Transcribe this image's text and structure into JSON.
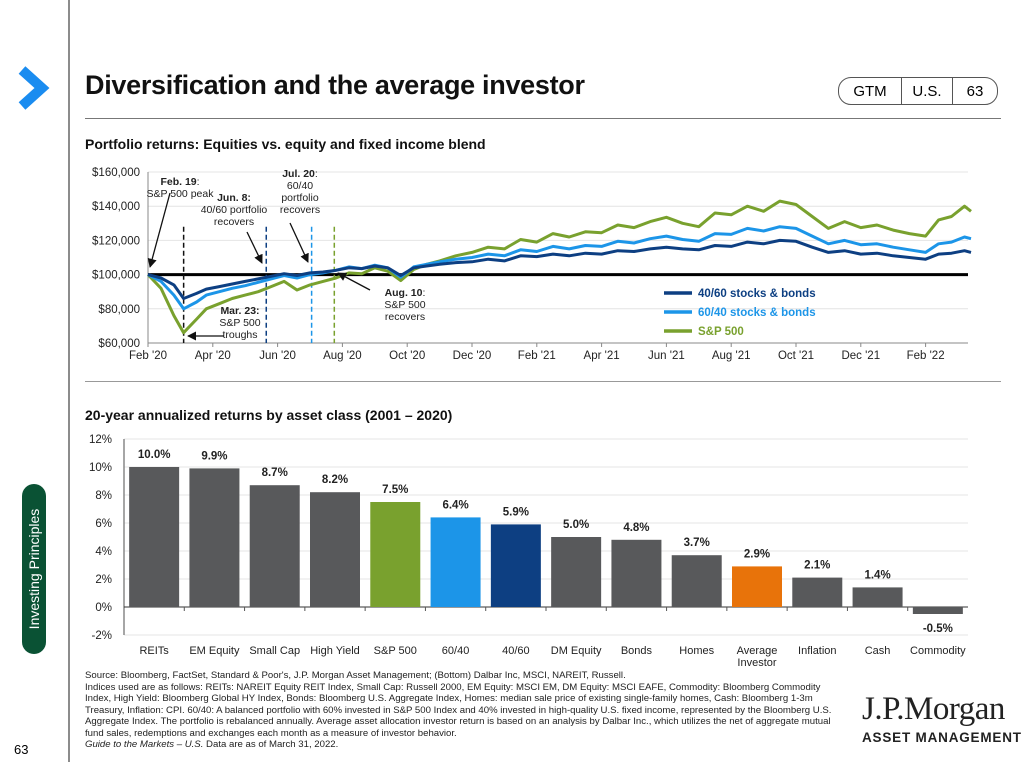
{
  "header": {
    "title": "Diversification and the average investor",
    "pill": [
      "GTM",
      "U.S.",
      "63"
    ]
  },
  "sidebar": {
    "section_label": "Investing Principles",
    "page_number": "63",
    "accent_color": "#1a8cf0",
    "section_color": "#0a5234"
  },
  "chart_data": [
    {
      "type": "line",
      "title": "Portfolio returns: Equities vs. equity and fixed income blend",
      "xlabel": "",
      "ylabel": "",
      "x_tick_labels": [
        "Feb '20",
        "Apr '20",
        "Jun '20",
        "Aug '20",
        "Oct '20",
        "Dec '20",
        "Feb '21",
        "Apr '21",
        "Jun '21",
        "Aug '21",
        "Oct '21",
        "Dec '21",
        "Feb '22"
      ],
      "x_range_months": [
        0,
        25.4
      ],
      "y_tick_labels": [
        "$60,000",
        "$80,000",
        "$100,000",
        "$120,000",
        "$140,000",
        "$160,000"
      ],
      "ylim": [
        60000,
        160000
      ],
      "y_ticks": [
        60000,
        80000,
        100000,
        120000,
        140000,
        160000
      ],
      "baseline": 100000,
      "grid": true,
      "legend_position": "bottom-right",
      "series": [
        {
          "name": "40/60 stocks & bonds",
          "color": "#0d3f82",
          "x": [
            0,
            0.4,
            0.8,
            1.1,
            1.5,
            1.8,
            2.2,
            2.6,
            3.0,
            3.4,
            3.8,
            4.2,
            4.6,
            5.0,
            5.4,
            5.8,
            6.2,
            6.6,
            7.0,
            7.4,
            7.8,
            8.2,
            8.6,
            9.0,
            9.5,
            10,
            10.5,
            11,
            11.5,
            12,
            12.5,
            13,
            13.5,
            14,
            14.5,
            15,
            15.5,
            16,
            16.5,
            17,
            17.5,
            18,
            18.5,
            19,
            19.5,
            20,
            20.5,
            21,
            21.5,
            22,
            22.5,
            23,
            23.5,
            24,
            24.4,
            24.8,
            25.2,
            25.4
          ],
          "y": [
            100000,
            98000,
            94000,
            86000,
            89000,
            91500,
            93000,
            94500,
            96000,
            97500,
            99000,
            100500,
            99500,
            101000,
            101500,
            102500,
            104000,
            103500,
            105000,
            104000,
            99500,
            104000,
            105000,
            106000,
            107000,
            107500,
            109000,
            108000,
            111000,
            110500,
            112000,
            111000,
            112500,
            112000,
            114000,
            113500,
            115000,
            116000,
            115000,
            114500,
            117000,
            116500,
            119000,
            118000,
            120000,
            119500,
            116000,
            113000,
            114000,
            112000,
            112500,
            111000,
            110000,
            109000,
            112000,
            112500,
            114000,
            113000
          ]
        },
        {
          "name": "60/40 stocks & bonds",
          "color": "#1c95e8",
          "x": [
            0,
            0.4,
            0.8,
            1.1,
            1.5,
            1.8,
            2.2,
            2.6,
            3.0,
            3.4,
            3.8,
            4.2,
            4.6,
            5.0,
            5.4,
            5.8,
            6.2,
            6.6,
            7.0,
            7.4,
            7.8,
            8.2,
            8.6,
            9.0,
            9.5,
            10,
            10.5,
            11,
            11.5,
            12,
            12.5,
            13,
            13.5,
            14,
            14.5,
            15,
            15.5,
            16,
            16.5,
            17,
            17.5,
            18,
            18.5,
            19,
            19.5,
            20,
            20.5,
            21,
            21.5,
            22,
            22.5,
            23,
            23.5,
            24,
            24.4,
            24.8,
            25.2,
            25.4
          ],
          "y": [
            100000,
            96000,
            88000,
            80000,
            84000,
            88000,
            90000,
            92000,
            93500,
            95500,
            97500,
            99500,
            98000,
            100000,
            101000,
            102500,
            104500,
            103500,
            105500,
            104000,
            98500,
            104500,
            106000,
            107500,
            109000,
            110000,
            112000,
            111000,
            114500,
            113500,
            116500,
            115000,
            117000,
            116500,
            119500,
            118500,
            121000,
            122500,
            120500,
            119500,
            124000,
            123500,
            127000,
            125500,
            128000,
            127000,
            122500,
            118000,
            120000,
            117500,
            118000,
            116000,
            114500,
            113000,
            118000,
            119000,
            122000,
            121000
          ]
        },
        {
          "name": "S&P 500",
          "color": "#79a12e",
          "x": [
            0,
            0.4,
            0.8,
            1.1,
            1.5,
            1.8,
            2.2,
            2.6,
            3.0,
            3.4,
            3.8,
            4.2,
            4.6,
            5.0,
            5.4,
            5.8,
            6.2,
            6.6,
            7.0,
            7.4,
            7.8,
            8.2,
            8.6,
            9.0,
            9.5,
            10,
            10.5,
            11,
            11.5,
            12,
            12.5,
            13,
            13.5,
            14,
            14.5,
            15,
            15.5,
            16,
            16.5,
            17,
            17.5,
            18,
            18.5,
            19,
            19.5,
            20,
            20.5,
            21,
            21.5,
            22,
            22.5,
            23,
            23.5,
            24,
            24.4,
            24.8,
            25.2,
            25.4
          ],
          "y": [
            100000,
            92000,
            76000,
            66000,
            74000,
            80000,
            83000,
            86000,
            88000,
            90000,
            93000,
            96000,
            91000,
            94000,
            96000,
            98000,
            101000,
            100500,
            104000,
            102000,
            96500,
            103000,
            106000,
            108000,
            111000,
            113000,
            116000,
            115000,
            120500,
            119000,
            124000,
            122000,
            125000,
            124500,
            129000,
            127500,
            131000,
            133500,
            130000,
            128000,
            136000,
            135000,
            140000,
            137000,
            143000,
            141000,
            134000,
            127000,
            131000,
            127500,
            129000,
            126000,
            124000,
            122500,
            132000,
            134000,
            140000,
            137000
          ]
        }
      ],
      "vertical_markers": [
        {
          "label": "Mar. 23: S&P 500 troughs",
          "month": 1.1,
          "color": "#111111"
        },
        {
          "label": "Jun. 8: 40/60 portfolio recovers",
          "month": 3.65,
          "color": "#0d3f82"
        },
        {
          "label": "Jul. 20: 60/40 portfolio recovers",
          "month": 5.05,
          "color": "#1c95e8"
        },
        {
          "label": "Aug. 10: S&P 500 recovers",
          "month": 5.75,
          "color": "#79a12e"
        }
      ],
      "annotations": [
        {
          "bold": "Feb. 19",
          "rest": ":",
          "line2": "S&P 500 peak"
        },
        {
          "bold": "Jun. 8:",
          "line2": "40/60 portfolio",
          "line3": "recovers"
        },
        {
          "bold": "Jul. 20",
          "rest": ":",
          "line2": "60/40",
          "line3": "portfolio",
          "line4": "recovers"
        },
        {
          "bold": "Mar. 23:",
          "line2": "S&P 500",
          "line3": "troughs"
        },
        {
          "bold": "Aug. 10",
          "rest": ":",
          "line2": "S&P 500",
          "line3": "recovers"
        }
      ]
    },
    {
      "type": "bar",
      "title": "20-year annualized returns by asset class (2001 – 2020)",
      "xlabel": "",
      "ylabel": "",
      "categories": [
        "REITs",
        "EM Equity",
        "Small Cap",
        "High Yield",
        "S&P 500",
        "60/40",
        "40/60",
        "DM Equity",
        "Bonds",
        "Homes",
        "Average Investor",
        "Inflation",
        "Cash",
        "Commodity"
      ],
      "values": [
        10.0,
        9.9,
        8.7,
        8.2,
        7.5,
        6.4,
        5.9,
        5.0,
        4.8,
        3.7,
        2.9,
        2.1,
        1.4,
        -0.5
      ],
      "data_labels": [
        "10.0%",
        "9.9%",
        "8.7%",
        "8.2%",
        "7.5%",
        "6.4%",
        "5.9%",
        "5.0%",
        "4.8%",
        "3.7%",
        "2.9%",
        "2.1%",
        "1.4%",
        "-0.5%"
      ],
      "colors": [
        "#58595b",
        "#58595b",
        "#58595b",
        "#58595b",
        "#79a12e",
        "#1c95e8",
        "#0d3f82",
        "#58595b",
        "#58595b",
        "#58595b",
        "#e8730a",
        "#58595b",
        "#58595b",
        "#58595b"
      ],
      "y_tick_labels": [
        "-2%",
        "0%",
        "2%",
        "4%",
        "6%",
        "8%",
        "10%",
        "12%"
      ],
      "y_ticks": [
        -2,
        0,
        2,
        4,
        6,
        8,
        10,
        12
      ],
      "ylim": [
        -2,
        12
      ],
      "grid": true
    }
  ],
  "footnote": {
    "source": "Source: Bloomberg, FactSet, Standard & Poor's, J.P. Morgan Asset Management; (Bottom) Dalbar Inc, MSCI, NAREIT, Russell.",
    "indices": "Indices used are as follows: REITs: NAREIT Equity REIT Index, Small Cap: Russell 2000, EM Equity: MSCI EM, DM Equity: MSCI EAFE, Commodity: Bloomberg Commodity Index, High Yield: Bloomberg Global HY Index, Bonds: Bloomberg U.S. Aggregate Index, Homes: median sale price of existing single-family homes, Cash: Bloomberg 1-3m Treasury, Inflation: CPI. 60/40: A balanced portfolio with 60% invested in S&P 500 Index and 40% invested in high-quality U.S. fixed income, represented by the Bloomberg U.S. Aggregate Index. The portfolio is rebalanced annually. Average asset allocation investor return is based on an analysis by Dalbar Inc., which utilizes the net of aggregate mutual fund sales, redemptions and exchanges each month as a measure of investor behavior.",
    "guide_italic": "Guide to the Markets – U.S.",
    "guide_rest": " Data are as of March 31, 2022."
  },
  "logo": {
    "brand": "J.P.Morgan",
    "sub": "ASSET MANAGEMENT"
  }
}
